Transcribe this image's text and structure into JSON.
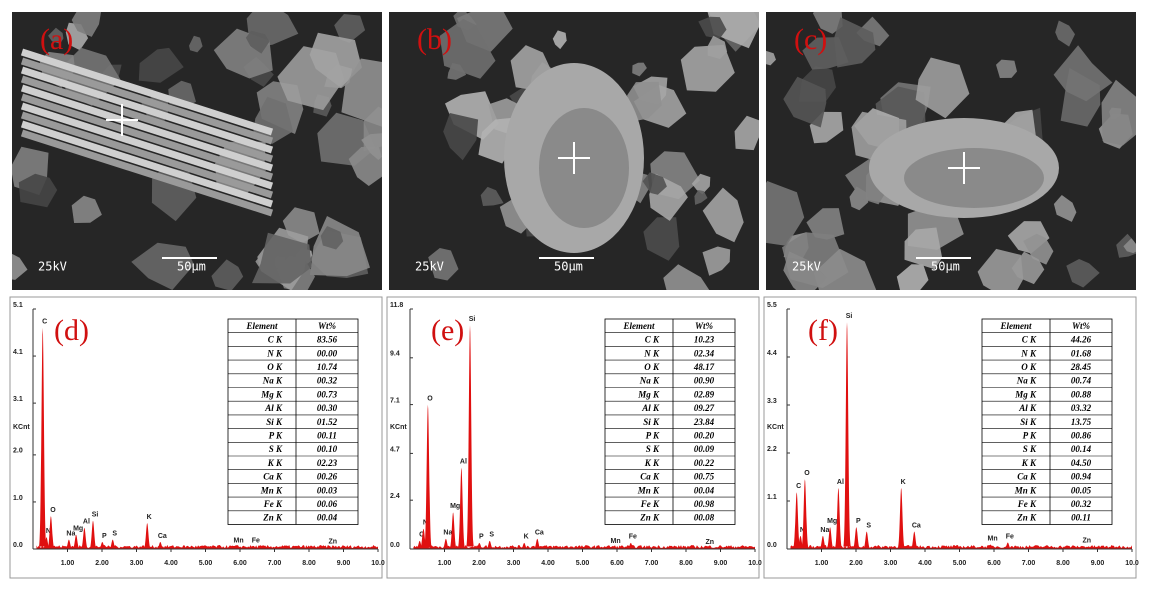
{
  "images": [
    {
      "label": "(a)",
      "voltage": "25kV",
      "scale": "50μm"
    },
    {
      "label": "(b)",
      "voltage": "25kV",
      "scale": "50μm"
    },
    {
      "label": "(c)",
      "voltage": "25kV",
      "scale": "50μm"
    }
  ],
  "spectra": [
    {
      "label": "(d)",
      "ylabel": "KCnt",
      "xlim": [
        0,
        10
      ],
      "ylim": [
        0,
        5.1
      ],
      "yticks": [
        {
          "value": 0,
          "label": "0.0"
        },
        {
          "value": 1.0,
          "label": "1.0"
        },
        {
          "value": 2.0,
          "label": "2.0"
        },
        3.1,
        4.1,
        5.1
      ],
      "xticks": [
        {
          "value": 1,
          "label": "1.00"
        },
        {
          "value": 2,
          "label": "2.00"
        },
        {
          "value": 3,
          "label": "3.00"
        },
        {
          "value": 4,
          "label": "4.00"
        },
        {
          "value": 5,
          "label": "5.00"
        },
        {
          "value": 6,
          "label": "6.00"
        },
        {
          "value": 7,
          "label": "7.00"
        },
        {
          "value": 8,
          "label": "8.00"
        },
        {
          "value": 9,
          "label": "9.00"
        },
        {
          "value": 10,
          "label": "10.0"
        }
      ],
      "peaks": [
        {
          "element": "C",
          "x": 0.28,
          "height": 4.7
        },
        {
          "element": "N",
          "x": 0.39,
          "height": 0.25
        },
        {
          "element": "O",
          "x": 0.52,
          "height": 0.7
        },
        {
          "element": "Na",
          "x": 1.04,
          "height": 0.2
        },
        {
          "element": "Mg",
          "x": 1.25,
          "height": 0.3
        },
        {
          "element": "Al",
          "x": 1.49,
          "height": 0.45
        },
        {
          "element": "Si",
          "x": 1.74,
          "height": 0.6
        },
        {
          "element": "P",
          "x": 2.01,
          "height": 0.15
        },
        {
          "element": "S",
          "x": 2.31,
          "height": 0.2
        },
        {
          "element": "K",
          "x": 3.31,
          "height": 0.55
        },
        {
          "element": "Ca",
          "x": 3.69,
          "height": 0.15
        },
        {
          "element": "Mn",
          "x": 5.9,
          "height": 0.05
        },
        {
          "element": "Fe",
          "x": 6.4,
          "height": 0.05
        },
        {
          "element": "Zn",
          "x": 8.63,
          "height": 0.03
        }
      ],
      "table": {
        "header": [
          "Element",
          "Wt%"
        ],
        "rows": [
          [
            "C K",
            "83.56"
          ],
          [
            "N K",
            "00.00"
          ],
          [
            "O K",
            "10.74"
          ],
          [
            "Na K",
            "00.32"
          ],
          [
            "Mg K",
            "00.73"
          ],
          [
            "Al K",
            "00.30"
          ],
          [
            "Si K",
            "01.52"
          ],
          [
            "P K",
            "00.11"
          ],
          [
            "S K",
            "00.10"
          ],
          [
            "K K",
            "02.23"
          ],
          [
            "Ca K",
            "00.26"
          ],
          [
            "Mn K",
            "00.03"
          ],
          [
            "Fe K",
            "00.06"
          ],
          [
            "Zn K",
            "00.04"
          ]
        ]
      }
    },
    {
      "label": "(e)",
      "ylabel": "KCnt",
      "xlim": [
        0,
        10
      ],
      "ylim": [
        0,
        11.8
      ],
      "yticks": [
        {
          "value": 0,
          "label": "0.0"
        },
        2.4,
        4.7,
        7.1,
        9.4,
        11.8
      ],
      "xticks": [
        {
          "value": 1,
          "label": "1.00"
        },
        {
          "value": 2,
          "label": "2.00"
        },
        {
          "value": 3,
          "label": "3.00"
        },
        {
          "value": 4,
          "label": "4.00"
        },
        {
          "value": 5,
          "label": "5.00"
        },
        {
          "value": 6,
          "label": "6.00"
        },
        {
          "value": 7,
          "label": "7.00"
        },
        {
          "value": 8,
          "label": "8.00"
        },
        {
          "value": 9,
          "label": "9.00"
        },
        {
          "value": 10,
          "label": "10.0"
        }
      ],
      "peaks": [
        {
          "element": "C",
          "x": 0.28,
          "height": 0.4
        },
        {
          "element": "N",
          "x": 0.39,
          "height": 1.0
        },
        {
          "element": "O",
          "x": 0.52,
          "height": 7.1
        },
        {
          "element": "Na",
          "x": 1.04,
          "height": 0.5
        },
        {
          "element": "Mg",
          "x": 1.25,
          "height": 1.8
        },
        {
          "element": "Al",
          "x": 1.49,
          "height": 4.0
        },
        {
          "element": "Si",
          "x": 1.74,
          "height": 11.0
        },
        {
          "element": "P",
          "x": 2.01,
          "height": 0.3
        },
        {
          "element": "S",
          "x": 2.31,
          "height": 0.4
        },
        {
          "element": "K",
          "x": 3.31,
          "height": 0.3
        },
        {
          "element": "Ca",
          "x": 3.69,
          "height": 0.5
        },
        {
          "element": "Mn",
          "x": 5.9,
          "height": 0.1
        },
        {
          "element": "Fe",
          "x": 6.4,
          "height": 0.3
        },
        {
          "element": "Zn",
          "x": 8.63,
          "height": 0.05
        }
      ],
      "table": {
        "header": [
          "Element",
          "Wt%"
        ],
        "rows": [
          [
            "C K",
            "10.23"
          ],
          [
            "N K",
            "02.34"
          ],
          [
            "O K",
            "48.17"
          ],
          [
            "Na K",
            "00.90"
          ],
          [
            "Mg K",
            "02.89"
          ],
          [
            "Al K",
            "09.27"
          ],
          [
            "Si K",
            "23.84"
          ],
          [
            "P K",
            "00.20"
          ],
          [
            "S K",
            "00.09"
          ],
          [
            "K K",
            "00.22"
          ],
          [
            "Ca K",
            "00.75"
          ],
          [
            "Mn K",
            "00.04"
          ],
          [
            "Fe K",
            "00.98"
          ],
          [
            "Zn K",
            "00.08"
          ]
        ]
      }
    },
    {
      "label": "(f)",
      "ylabel": "KCnt",
      "xlim": [
        0,
        10
      ],
      "ylim": [
        0,
        5.5
      ],
      "yticks": [
        {
          "value": 0,
          "label": "0.0"
        },
        1.1,
        2.2,
        3.3,
        4.4,
        5.5
      ],
      "xticks": [
        {
          "value": 1,
          "label": "1.00"
        },
        {
          "value": 2,
          "label": "2.00"
        },
        {
          "value": 3,
          "label": "3.00"
        },
        {
          "value": 4,
          "label": "4.00"
        },
        {
          "value": 5,
          "label": "5.00"
        },
        {
          "value": 6,
          "label": "6.00"
        },
        {
          "value": 7,
          "label": "7.00"
        },
        {
          "value": 8,
          "label": "8.00"
        },
        {
          "value": 9,
          "label": "9.00"
        },
        {
          "value": 10,
          "label": "10.0"
        }
      ],
      "peaks": [
        {
          "element": "C",
          "x": 0.28,
          "height": 1.3
        },
        {
          "element": "N",
          "x": 0.39,
          "height": 0.3
        },
        {
          "element": "O",
          "x": 0.52,
          "height": 1.6
        },
        {
          "element": "Na",
          "x": 1.04,
          "height": 0.3
        },
        {
          "element": "Mg",
          "x": 1.25,
          "height": 0.5
        },
        {
          "element": "Al",
          "x": 1.49,
          "height": 1.4
        },
        {
          "element": "Si",
          "x": 1.74,
          "height": 5.2
        },
        {
          "element": "P",
          "x": 2.01,
          "height": 0.5
        },
        {
          "element": "S",
          "x": 2.31,
          "height": 0.4
        },
        {
          "element": "K",
          "x": 3.31,
          "height": 1.4
        },
        {
          "element": "Ca",
          "x": 3.69,
          "height": 0.4
        },
        {
          "element": "Mn",
          "x": 5.9,
          "height": 0.1
        },
        {
          "element": "Fe",
          "x": 6.4,
          "height": 0.15
        },
        {
          "element": "Zn",
          "x": 8.63,
          "height": 0.05
        }
      ],
      "table": {
        "header": [
          "Element",
          "Wt%"
        ],
        "rows": [
          [
            "C K",
            "44.26"
          ],
          [
            "N K",
            "01.68"
          ],
          [
            "O K",
            "28.45"
          ],
          [
            "Na K",
            "00.74"
          ],
          [
            "Mg K",
            "00.88"
          ],
          [
            "Al K",
            "03.32"
          ],
          [
            "Si K",
            "13.75"
          ],
          [
            "P K",
            "00.86"
          ],
          [
            "S K",
            "00.14"
          ],
          [
            "K K",
            "04.50"
          ],
          [
            "Ca K",
            "00.94"
          ],
          [
            "Mn K",
            "00.05"
          ],
          [
            "Fe K",
            "00.32"
          ],
          [
            "Zn K",
            "00.11"
          ]
        ]
      }
    }
  ]
}
